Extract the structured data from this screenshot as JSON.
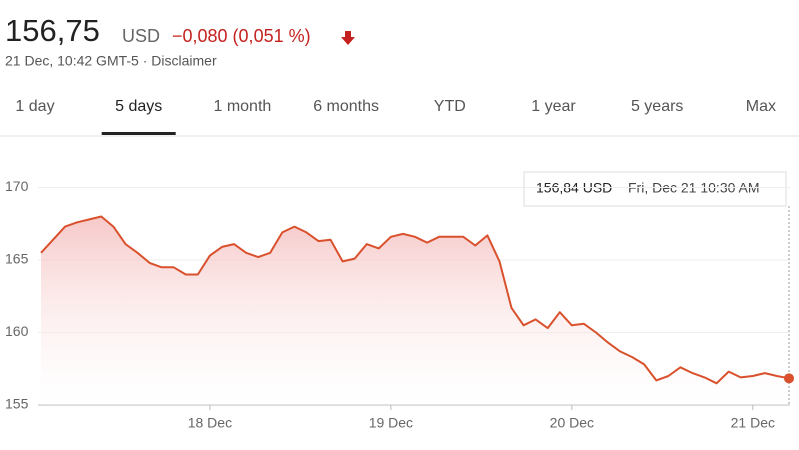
{
  "header": {
    "price": "156,75",
    "currency": "USD",
    "change": "−0,080 (0,051 %)",
    "meta": "21 Dec, 10:42 GMT-5 · Disclaimer"
  },
  "tabs": {
    "items": [
      "1 day",
      "5 days",
      "1 month",
      "6 months",
      "YTD",
      "1 year",
      "5 years",
      "Max"
    ],
    "selected": 1
  },
  "tooltip": {
    "price": "156,84 USD",
    "time": "Fri, Dec 21 10:30 AM"
  },
  "chart_data": {
    "type": "area",
    "color": "#d9502c",
    "categories": [
      null,
      null,
      null,
      null,
      null,
      null,
      null,
      null,
      null,
      null,
      null,
      null,
      null,
      null,
      "18 Dec",
      null,
      null,
      null,
      null,
      null,
      null,
      null,
      null,
      null,
      null,
      null,
      null,
      null,
      null,
      "19 Dec",
      null,
      null,
      null,
      null,
      null,
      null,
      null,
      null,
      null,
      null,
      null,
      null,
      null,
      null,
      "20 Dec",
      null,
      null,
      null,
      null,
      null,
      null,
      null,
      null,
      null,
      null,
      null,
      null,
      null,
      null,
      "21 Dec",
      null,
      null,
      null
    ],
    "values": [
      165.5,
      166.4,
      167.3,
      167.6,
      167.8,
      168.0,
      167.3,
      166.1,
      165.5,
      164.8,
      164.5,
      164.5,
      164.0,
      164.0,
      165.3,
      165.9,
      166.1,
      165.5,
      165.2,
      165.5,
      166.9,
      167.3,
      166.9,
      166.3,
      166.4,
      164.9,
      165.1,
      166.1,
      165.8,
      166.6,
      166.8,
      166.6,
      166.2,
      166.6,
      166.6,
      166.6,
      166.0,
      166.7,
      164.9,
      161.7,
      160.5,
      160.9,
      160.3,
      161.4,
      160.5,
      160.6,
      160.0,
      159.3,
      158.7,
      158.3,
      157.8,
      156.7,
      157.0,
      157.6,
      157.2,
      156.9,
      156.5,
      157.3,
      156.9,
      157.0,
      157.2,
      157.0,
      156.84
    ],
    "ylim": [
      155,
      173
    ],
    "yticks": [
      155,
      160,
      165,
      170
    ],
    "grid": true
  }
}
